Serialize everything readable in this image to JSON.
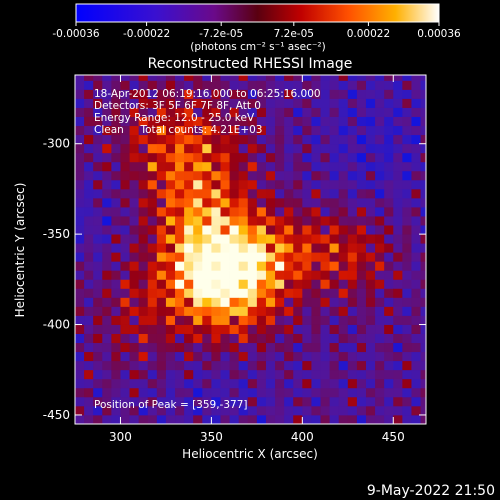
{
  "chart_data": {
    "type": "heatmap",
    "title": "Reconstructed RHESSI Image",
    "xlabel": "Heliocentric X (arcsec)",
    "ylabel": "Heliocentric Y (arcsec)",
    "xlim": [
      275,
      468
    ],
    "ylim": [
      -455,
      -262
    ],
    "x_ticks": [
      300,
      350,
      400,
      450
    ],
    "y_ticks": [
      -300,
      -350,
      -400,
      -450
    ],
    "colorbar": {
      "ticks": [
        "-0.00036",
        "-0.00022",
        "-7.2e-05",
        "7.2e-05",
        "0.00022",
        "0.00036"
      ],
      "tick_values": [
        -0.00036,
        -0.00022,
        -7.2e-05,
        7.2e-05,
        0.00022,
        0.00036
      ],
      "range": [
        -0.00036,
        0.00036
      ],
      "units": "(photons cm⁻² s⁻¹ asec⁻²)"
    },
    "annotations": [
      "18-Apr-2012 06:19:16.000 to 06:25:16.000",
      "Detectors: 3F 5F 6F 7F 8F, Att 0",
      "Energy Range: 12.0 - 25.0 keV",
      "Clean     Total counts: 4.21E+03"
    ],
    "peak_label": "Position of Peak = [359,-377]",
    "peak": [
      359,
      -377
    ],
    "grid": false
  },
  "footer": {
    "timestamp": "9-May-2022 21:50"
  }
}
